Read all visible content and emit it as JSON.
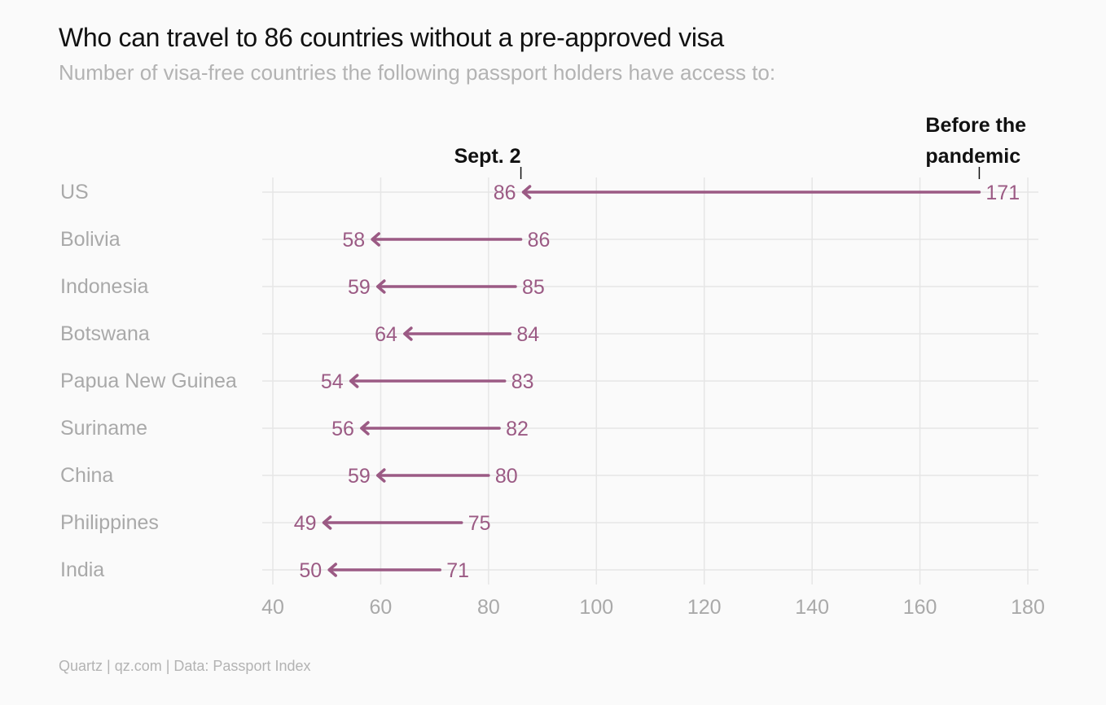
{
  "title": "Who can travel to 86 countries without a pre-approved visa",
  "subtitle": "Number of visa-free countries the following passport holders have access to:",
  "source": "Quartz | qz.com | Data: Passport Index",
  "colors": {
    "arrow": "#9b5a84",
    "label": "#a9a9a9",
    "grid": "#e6e6e6"
  },
  "chart_data": {
    "type": "arrow",
    "title": "Who can travel to 86 countries without a pre-approved visa",
    "xlim": [
      40,
      180
    ],
    "xticks": [
      40,
      60,
      80,
      100,
      120,
      140,
      160,
      180
    ],
    "series_names": {
      "start": "Before the pandemic",
      "end": "Sept. 2"
    },
    "annotations": {
      "end_label": "Sept. 2",
      "start_label_line1": "Before the",
      "start_label_line2": "pandemic"
    },
    "rows": [
      {
        "country": "US",
        "before": 171,
        "sept2": 86
      },
      {
        "country": "Bolivia",
        "before": 86,
        "sept2": 58
      },
      {
        "country": "Indonesia",
        "before": 85,
        "sept2": 59
      },
      {
        "country": "Botswana",
        "before": 84,
        "sept2": 64
      },
      {
        "country": "Papua New Guinea",
        "before": 83,
        "sept2": 54
      },
      {
        "country": "Suriname",
        "before": 82,
        "sept2": 56
      },
      {
        "country": "China",
        "before": 80,
        "sept2": 59
      },
      {
        "country": "Philippines",
        "before": 75,
        "sept2": 49
      },
      {
        "country": "India",
        "before": 71,
        "sept2": 50
      }
    ]
  }
}
